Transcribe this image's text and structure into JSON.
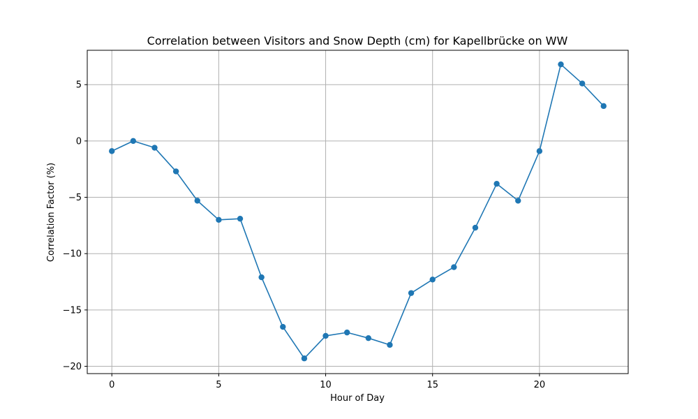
{
  "chart_data": {
    "type": "line",
    "title": "Correlation between Visitors and Snow Depth (cm) for Kapellbrücke on WW",
    "xlabel": "Hour of Day",
    "ylabel": "Correlation Factor (%)",
    "x": [
      0,
      1,
      2,
      3,
      4,
      5,
      6,
      7,
      8,
      9,
      10,
      11,
      12,
      13,
      14,
      15,
      16,
      17,
      18,
      19,
      20,
      21,
      22,
      23
    ],
    "series": [
      {
        "values": [
          -0.9,
          0.0,
          -0.6,
          -2.7,
          -5.3,
          -7.0,
          -6.9,
          -12.1,
          -16.5,
          -19.3,
          -17.3,
          -17.0,
          -17.5,
          -18.1,
          -13.5,
          -12.3,
          -11.2,
          -7.7,
          -3.8,
          -5.3,
          -0.9,
          6.8,
          5.1,
          3.1
        ],
        "color": "#1f77b4"
      }
    ],
    "xlim": [
      -1.15,
      24.15
    ],
    "ylim": [
      -20.65,
      8.05
    ],
    "xticks": [
      0,
      5,
      10,
      15,
      20
    ],
    "yticks": [
      -20,
      -15,
      -10,
      -5,
      0,
      5
    ],
    "xtick_labels": [
      "0",
      "5",
      "10",
      "15",
      "20"
    ],
    "ytick_labels": [
      "−20",
      "−15",
      "−10",
      "−5",
      "0",
      "5"
    ],
    "grid": true,
    "marker": "circle",
    "line_color": "#1f77b4",
    "grid_color": "#b0b0b0",
    "axis_color": "#000000"
  }
}
